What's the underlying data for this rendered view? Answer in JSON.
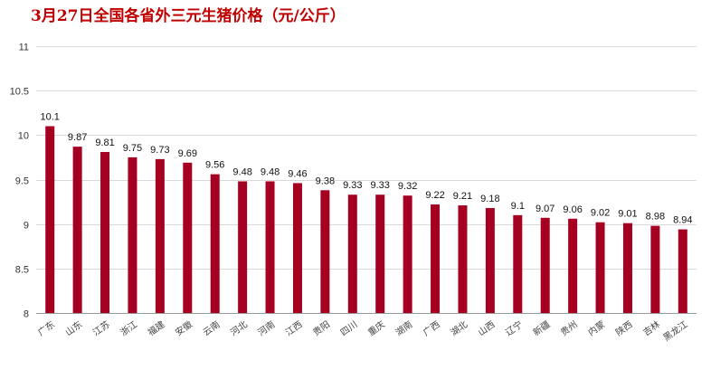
{
  "chart_data": {
    "type": "bar",
    "title": "3月27日全国各省外三元生猪价格（元/公斤）",
    "xlabel": "",
    "ylabel": "",
    "ylim": [
      8,
      11
    ],
    "yticks": [
      "8",
      "8.5",
      "9",
      "9.5",
      "10",
      "10.5",
      "11"
    ],
    "grid": true,
    "bar_color": "#a50021",
    "categories": [
      "广东",
      "山东",
      "江苏",
      "浙江",
      "福建",
      "安徽",
      "云南",
      "河北",
      "河南",
      "江西",
      "贵阳",
      "四川",
      "重庆",
      "湖南",
      "广西",
      "湖北",
      "山西",
      "辽宁",
      "新疆",
      "贵州",
      "内蒙",
      "陕西",
      "吉林",
      "黑龙江"
    ],
    "values": [
      10.1,
      9.87,
      9.81,
      9.75,
      9.73,
      9.69,
      9.56,
      9.48,
      9.48,
      9.46,
      9.38,
      9.33,
      9.33,
      9.32,
      9.22,
      9.21,
      9.18,
      9.1,
      9.07,
      9.06,
      9.02,
      9.01,
      8.98,
      8.94
    ],
    "value_labels": [
      "10.1",
      "9.87",
      "9.81",
      "9.75",
      "9.73",
      "9.69",
      "9.56",
      "9.48",
      "9.48",
      "9.46",
      "9.38",
      "9.33",
      "9.33",
      "9.32",
      "9.22",
      "9.21",
      "9.18",
      "9.1",
      "9.07",
      "9.06",
      "9.02",
      "9.01",
      "8.98",
      "8.94"
    ]
  }
}
